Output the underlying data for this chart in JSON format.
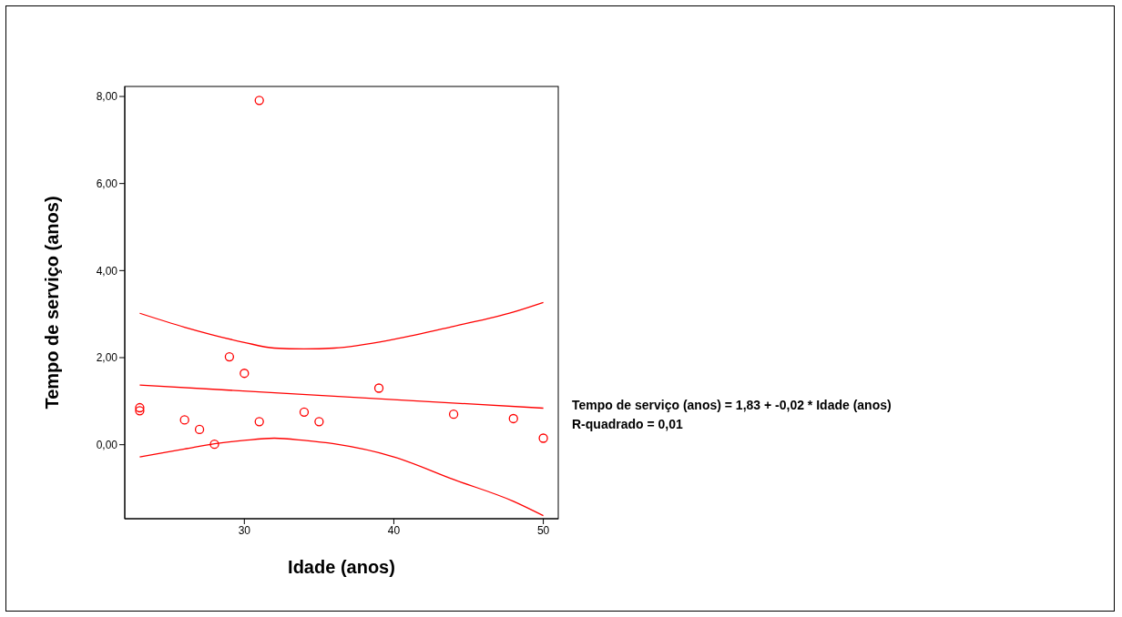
{
  "chart_data": {
    "type": "scatter",
    "xlabel": "Idade (anos)",
    "ylabel": "Tempo de serviço (anos)",
    "xlim": [
      22,
      51
    ],
    "xticks": [
      30,
      40,
      50
    ],
    "ylim": [
      -1.7,
      8.23
    ],
    "yticks": [
      {
        "value": 0,
        "label": "0,00"
      },
      {
        "value": 2,
        "label": "2,00"
      },
      {
        "value": 4,
        "label": "4,00"
      },
      {
        "value": 6,
        "label": "6,00"
      },
      {
        "value": 8,
        "label": "8,00"
      }
    ],
    "grid": false,
    "marker": "circle",
    "series": [
      {
        "color": "#ff0000",
        "x": [
          23,
          23,
          26,
          27,
          28,
          29,
          30,
          31,
          31,
          34,
          35,
          39,
          44,
          48,
          50
        ],
        "values": [
          0.85,
          0.78,
          0.57,
          0.35,
          0.01,
          2.02,
          1.64,
          7.91,
          0.53,
          0.75,
          0.53,
          1.3,
          0.7,
          0.6,
          0.15
        ]
      },
      {
        "type": "line",
        "color": "#ff0000",
        "marker": "none",
        "x": [
          23,
          50
        ],
        "values": [
          1.37,
          0.84
        ]
      },
      {
        "type": "line",
        "color": "#ff0000",
        "marker": "none",
        "x": [
          23,
          26,
          30,
          32,
          34,
          36,
          40,
          44,
          48,
          50
        ],
        "values": [
          3.02,
          2.7,
          2.35,
          2.22,
          2.2,
          2.22,
          2.42,
          2.72,
          3.05,
          3.27
        ]
      },
      {
        "type": "line",
        "color": "#ff0000",
        "marker": "none",
        "x": [
          23,
          26,
          28,
          30,
          32,
          34,
          36,
          40,
          44,
          48,
          50
        ],
        "values": [
          -0.28,
          -0.1,
          0.02,
          0.1,
          0.15,
          0.1,
          0.02,
          -0.28,
          -0.8,
          -1.3,
          -1.63
        ]
      }
    ],
    "annotations": [
      "Tempo de serviço (anos) = 1,83 + -0,02 * Idade (anos)",
      "R-quadrado = 0,01"
    ]
  }
}
